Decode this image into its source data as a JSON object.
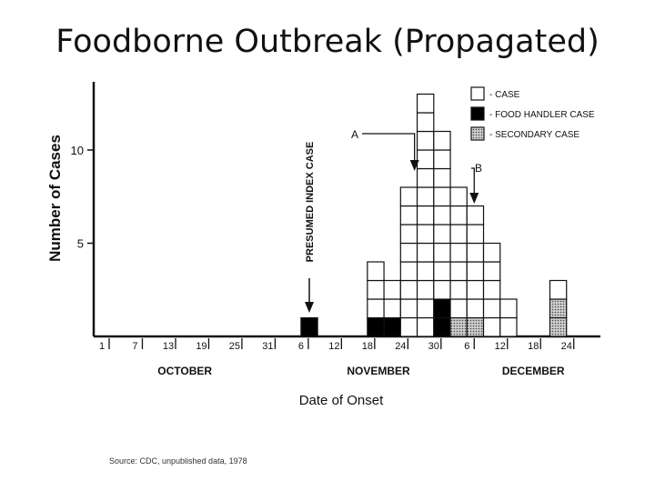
{
  "page": {
    "title": "Foodborne Outbreak (Propagated)",
    "source_note": "Source: CDC, unpublished data, 1978"
  },
  "colors": {
    "case": "#ffffff",
    "food_handler": "#000000",
    "secondary": "#9a9a9a",
    "ink": "#111111"
  },
  "chart_data": {
    "type": "bar",
    "subtype": "stacked-epidemic-histogram",
    "ylabel": "Number of Cases",
    "xlabel": "Date of Onset",
    "ylim": [
      0,
      13
    ],
    "yticks": [
      5,
      10
    ],
    "bin_days": 3,
    "x_start_label": "October 1",
    "x_end_label": "December 29",
    "xticks": [
      {
        "day": 0,
        "label": "1"
      },
      {
        "day": 6,
        "label": "7"
      },
      {
        "day": 12,
        "label": "13"
      },
      {
        "day": 18,
        "label": "19"
      },
      {
        "day": 24,
        "label": "25"
      },
      {
        "day": 30,
        "label": "31"
      },
      {
        "day": 36,
        "label": "6"
      },
      {
        "day": 42,
        "label": "12"
      },
      {
        "day": 48,
        "label": "18"
      },
      {
        "day": 54,
        "label": "24"
      },
      {
        "day": 60,
        "label": "30"
      },
      {
        "day": 66,
        "label": "6"
      },
      {
        "day": 72,
        "label": "12"
      },
      {
        "day": 78,
        "label": "18"
      },
      {
        "day": 84,
        "label": "24"
      }
    ],
    "months": [
      {
        "label": "OCTOBER",
        "day": 15
      },
      {
        "label": "NOVEMBER",
        "day": 50
      },
      {
        "label": "DECEMBER",
        "day": 78
      }
    ],
    "bins": [
      {
        "start": "Nov 6",
        "day": 36,
        "food_handler": 1,
        "secondary": 0,
        "case": 0
      },
      {
        "start": "Nov 18",
        "day": 48,
        "food_handler": 1,
        "secondary": 0,
        "case": 3
      },
      {
        "start": "Nov 21",
        "day": 51,
        "food_handler": 1,
        "secondary": 0,
        "case": 2
      },
      {
        "start": "Nov 24",
        "day": 54,
        "food_handler": 0,
        "secondary": 0,
        "case": 8
      },
      {
        "start": "Nov 27",
        "day": 57,
        "food_handler": 0,
        "secondary": 0,
        "case": 13
      },
      {
        "start": "Nov 30",
        "day": 60,
        "food_handler": 2,
        "secondary": 0,
        "case": 9
      },
      {
        "start": "Dec 3",
        "day": 63,
        "food_handler": 0,
        "secondary": 1,
        "case": 7
      },
      {
        "start": "Dec 6",
        "day": 66,
        "food_handler": 0,
        "secondary": 1,
        "case": 6
      },
      {
        "start": "Dec 9",
        "day": 69,
        "food_handler": 0,
        "secondary": 0,
        "case": 5
      },
      {
        "start": "Dec 12",
        "day": 72,
        "food_handler": 0,
        "secondary": 0,
        "case": 2
      },
      {
        "start": "Dec 21",
        "day": 81,
        "food_handler": 0,
        "secondary": 2,
        "case": 1
      }
    ],
    "legend": [
      {
        "key": "case",
        "label": "- CASE"
      },
      {
        "key": "food_handler",
        "label": "- FOOD HANDLER CASE"
      },
      {
        "key": "secondary",
        "label": "- SECONDARY CASE"
      }
    ],
    "legend_position": "top-right",
    "annotations": [
      {
        "label": "PRESUMED INDEX CASE",
        "day": 36
      },
      {
        "label": "A",
        "day": 57
      },
      {
        "label": "B",
        "day": 66
      }
    ],
    "grid": false
  }
}
